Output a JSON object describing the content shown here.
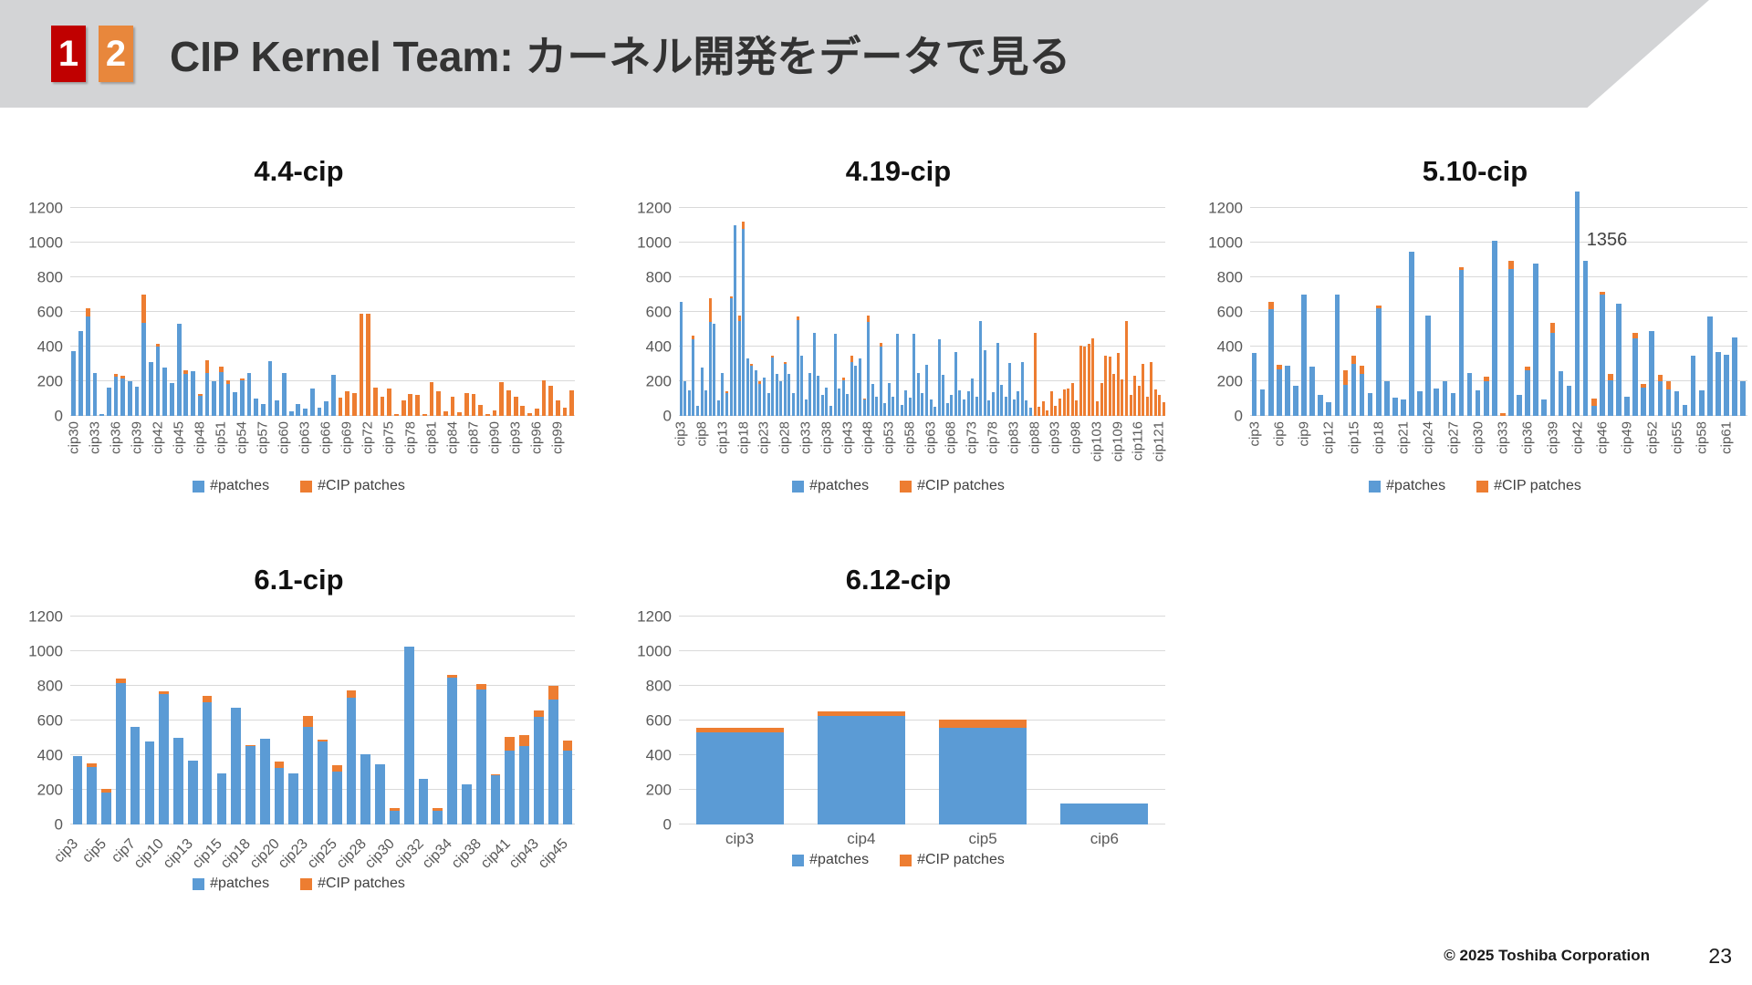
{
  "header": {
    "badge1": "1",
    "badge2": "2",
    "title": "CIP Kernel Team: カーネル開発をデータで見る"
  },
  "footer": {
    "copyright": "© 2025 Toshiba Corporation",
    "page": "23"
  },
  "colors": {
    "patches_blue": "#5B9BD5",
    "cip_patches_orange": "#ED7D31",
    "badge1_bg": "#C00000",
    "badge2_bg": "#E8873C",
    "header_bg": "#D3D4D6",
    "gridline": "#D9D9D9",
    "tick_text": "#595959"
  },
  "chart_data": [
    {
      "type": "bar",
      "stacked": true,
      "title": "4.4-cip",
      "ylim": [
        0,
        1200
      ],
      "ytick_step": 200,
      "grid": true,
      "legend_position": "bottom",
      "label_rotation": "vertical",
      "n_bars": 72,
      "tick_every": 3,
      "categories": [
        "cip30",
        "cip33",
        "cip36",
        "cip39",
        "cip42",
        "cip45",
        "cip48",
        "cip51",
        "cip54",
        "cip57",
        "cip60",
        "cip63",
        "cip66",
        "cip69",
        "cip72",
        "cip75",
        "cip78",
        "cip81",
        "cip84",
        "cip87",
        "cip90",
        "cip93",
        "cip96",
        "cip99"
      ],
      "series": [
        {
          "name": "#patches",
          "color": "#5B9BD5",
          "values": [
            375,
            490,
            575,
            250,
            10,
            165,
            225,
            215,
            200,
            170,
            535,
            310,
            400,
            280,
            190,
            530,
            240,
            260,
            115,
            245,
            200,
            255,
            185,
            135,
            205,
            245,
            100,
            70,
            315,
            90,
            245,
            25,
            70,
            40,
            160,
            45,
            85,
            235,
            0,
            0,
            0,
            0,
            0,
            0,
            0,
            0,
            0,
            0,
            0,
            0,
            0,
            0,
            0,
            0,
            0,
            0,
            0,
            0,
            0,
            0,
            0,
            0,
            0,
            0,
            0,
            0,
            0,
            0,
            0,
            0,
            0,
            0
          ]
        },
        {
          "name": "#CIP patches",
          "color": "#ED7D31",
          "values": [
            0,
            0,
            45,
            0,
            0,
            0,
            15,
            15,
            0,
            0,
            165,
            0,
            15,
            0,
            0,
            0,
            25,
            0,
            10,
            75,
            0,
            30,
            20,
            0,
            10,
            0,
            0,
            0,
            0,
            0,
            0,
            0,
            0,
            0,
            0,
            0,
            0,
            0,
            105,
            140,
            130,
            590,
            590,
            165,
            110,
            160,
            10,
            90,
            125,
            120,
            10,
            195,
            140,
            25,
            110,
            20,
            130,
            125,
            65,
            10,
            30,
            195,
            145,
            110,
            60,
            15,
            40,
            205,
            175,
            90,
            50,
            150
          ]
        }
      ]
    },
    {
      "type": "bar",
      "stacked": true,
      "title": "4.19-cip",
      "ylim": [
        0,
        1200
      ],
      "ytick_step": 200,
      "grid": true,
      "legend_position": "bottom",
      "label_rotation": "vertical",
      "n_bars": 117,
      "tick_every": 5,
      "categories": [
        "cip3",
        "cip8",
        "cip13",
        "cip18",
        "cip23",
        "cip28",
        "cip33",
        "cip38",
        "cip43",
        "cip48",
        "cip53",
        "cip58",
        "cip63",
        "cip68",
        "cip73",
        "cip78",
        "cip83",
        "cip88",
        "cip93",
        "cip98",
        "cip103",
        "cip109",
        "cip116",
        "cip121"
      ],
      "series": [
        {
          "name": "#patches",
          "color": "#5B9BD5",
          "values": [
            660,
            200,
            150,
            440,
            60,
            280,
            145,
            540,
            530,
            90,
            245,
            130,
            680,
            1100,
            545,
            1080,
            330,
            290,
            265,
            185,
            220,
            130,
            335,
            240,
            200,
            300,
            240,
            130,
            555,
            345,
            95,
            250,
            480,
            230,
            120,
            165,
            60,
            475,
            160,
            205,
            125,
            310,
            290,
            330,
            95,
            540,
            185,
            110,
            400,
            75,
            190,
            110,
            475,
            65,
            150,
            105,
            475,
            250,
            130,
            295,
            95,
            55,
            440,
            235,
            75,
            120,
            370,
            145,
            95,
            140,
            215,
            110,
            545,
            380,
            90,
            135,
            420,
            180,
            110,
            305,
            95,
            140,
            310,
            90,
            45,
            0,
            0,
            0,
            0,
            0,
            0,
            0,
            0,
            0,
            0,
            0,
            0,
            0,
            0,
            0,
            0,
            0,
            0,
            0,
            0,
            0,
            0,
            0,
            0,
            0,
            0,
            0,
            0,
            0,
            0,
            0,
            0
          ]
        },
        {
          "name": "#CIP patches",
          "color": "#ED7D31",
          "values": [
            0,
            0,
            0,
            25,
            0,
            0,
            0,
            140,
            0,
            0,
            0,
            10,
            10,
            0,
            35,
            40,
            0,
            10,
            0,
            15,
            0,
            0,
            10,
            0,
            0,
            10,
            0,
            0,
            20,
            0,
            0,
            0,
            0,
            0,
            0,
            0,
            0,
            0,
            0,
            15,
            0,
            35,
            0,
            0,
            5,
            40,
            0,
            0,
            20,
            0,
            0,
            0,
            0,
            0,
            0,
            0,
            0,
            0,
            0,
            0,
            0,
            0,
            0,
            0,
            0,
            0,
            0,
            0,
            0,
            0,
            0,
            0,
            0,
            0,
            0,
            0,
            0,
            0,
            0,
            0,
            0,
            0,
            0,
            0,
            0,
            480,
            55,
            85,
            30,
            140,
            60,
            100,
            155,
            160,
            190,
            90,
            405,
            400,
            415,
            450,
            85,
            190,
            345,
            340,
            240,
            365,
            210,
            550,
            120,
            230,
            175,
            300,
            110,
            310,
            155,
            120,
            80
          ]
        }
      ]
    },
    {
      "type": "bar",
      "stacked": true,
      "title": "5.10-cip",
      "ylim": [
        0,
        1200
      ],
      "ytick_step": 200,
      "grid": true,
      "legend_position": "bottom",
      "label_rotation": "vertical",
      "n_bars": 60,
      "tick_every": 3,
      "categories": [
        "cip3",
        "cip6",
        "cip9",
        "cip12",
        "cip15",
        "cip18",
        "cip21",
        "cip24",
        "cip27",
        "cip30",
        "cip33",
        "cip36",
        "cip39",
        "cip42",
        "cip46",
        "cip49",
        "cip52",
        "cip55",
        "cip58",
        "cip61"
      ],
      "annotation": {
        "text": "1356",
        "bar_index": 39,
        "note": "bar exceeds axis max and is clipped"
      },
      "series": [
        {
          "name": "#patches",
          "color": "#5B9BD5",
          "values": [
            365,
            155,
            615,
            270,
            290,
            175,
            700,
            285,
            120,
            80,
            700,
            180,
            300,
            240,
            130,
            620,
            200,
            105,
            95,
            950,
            140,
            580,
            160,
            200,
            130,
            840,
            245,
            150,
            200,
            1010,
            0,
            850,
            120,
            265,
            880,
            95,
            480,
            260,
            175,
            1356,
            895,
            60,
            700,
            205,
            650,
            110,
            450,
            165,
            490,
            200,
            155,
            140,
            65,
            345,
            150,
            575,
            370,
            355,
            455,
            200
          ]
        },
        {
          "name": "#CIP patches",
          "color": "#ED7D31",
          "values": [
            0,
            0,
            45,
            25,
            0,
            0,
            0,
            0,
            0,
            0,
            0,
            85,
            50,
            50,
            0,
            15,
            0,
            0,
            0,
            0,
            0,
            0,
            0,
            0,
            0,
            20,
            0,
            0,
            25,
            0,
            15,
            45,
            0,
            20,
            0,
            0,
            55,
            0,
            0,
            0,
            0,
            40,
            15,
            35,
            0,
            0,
            30,
            20,
            0,
            35,
            45,
            0,
            0,
            0,
            0,
            0,
            0,
            0,
            0,
            0
          ]
        }
      ]
    },
    {
      "type": "bar",
      "stacked": true,
      "title": "6.1-cip",
      "ylim": [
        0,
        1200
      ],
      "ytick_step": 200,
      "grid": true,
      "legend_position": "bottom",
      "label_rotation": "diagonal",
      "n_bars": 35,
      "tick_every": 2,
      "categories": [
        "cip3",
        "cip5",
        "cip7",
        "cip10",
        "cip13",
        "cip15",
        "cip18",
        "cip20",
        "cip23",
        "cip25",
        "cip28",
        "cip30",
        "cip32",
        "cip34",
        "cip38",
        "cip41",
        "cip43",
        "cip45"
      ],
      "series": [
        {
          "name": "#patches",
          "color": "#5B9BD5",
          "values": [
            395,
            330,
            185,
            815,
            565,
            480,
            755,
            500,
            370,
            705,
            295,
            675,
            455,
            495,
            325,
            295,
            565,
            480,
            305,
            730,
            405,
            350,
            80,
            1025,
            265,
            80,
            850,
            230,
            780,
            285,
            425,
            455,
            620,
            720,
            425
          ]
        },
        {
          "name": "#CIP patches",
          "color": "#ED7D31",
          "values": [
            0,
            25,
            20,
            25,
            0,
            0,
            15,
            0,
            0,
            35,
            0,
            0,
            5,
            0,
            40,
            0,
            60,
            10,
            35,
            45,
            0,
            0,
            15,
            0,
            0,
            15,
            15,
            0,
            30,
            5,
            80,
            60,
            40,
            80,
            60
          ]
        }
      ]
    },
    {
      "type": "bar",
      "stacked": true,
      "title": "6.12-cip",
      "ylim": [
        0,
        1200
      ],
      "ytick_step": 200,
      "grid": true,
      "legend_position": "bottom",
      "label_rotation": "horizontal",
      "n_bars": 4,
      "tick_every": 1,
      "categories": [
        "cip3",
        "cip4",
        "cip5",
        "cip6"
      ],
      "series": [
        {
          "name": "#patches",
          "color": "#5B9BD5",
          "values": [
            530,
            625,
            560,
            120
          ]
        },
        {
          "name": "#CIP patches",
          "color": "#ED7D31",
          "values": [
            30,
            30,
            45,
            0
          ]
        }
      ]
    }
  ]
}
